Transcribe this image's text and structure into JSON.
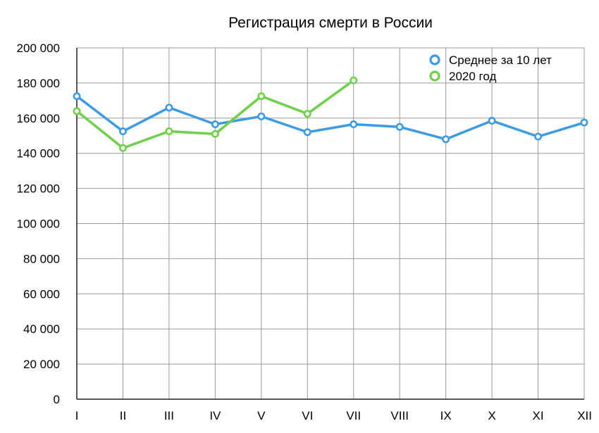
{
  "chart_data": {
    "type": "line",
    "title": "Регистрация смерти в России",
    "xlabel": "",
    "ylabel": "",
    "categories": [
      "I",
      "II",
      "III",
      "IV",
      "V",
      "VI",
      "VII",
      "VIII",
      "IX",
      "X",
      "XI",
      "XII"
    ],
    "y_tick_labels": [
      "0",
      "20 000",
      "40 000",
      "60 000",
      "80 000",
      "100 000",
      "120 000",
      "140 000",
      "160 000",
      "180 000",
      "200 000"
    ],
    "y_ticks": [
      0,
      20000,
      40000,
      60000,
      80000,
      100000,
      120000,
      140000,
      160000,
      180000,
      200000
    ],
    "ylim": [
      0,
      200000
    ],
    "grid": true,
    "legend_position": "top-right",
    "series": [
      {
        "name": "Среднее за 10 лет",
        "color": "#3d9be3",
        "values": [
          172500,
          152500,
          166000,
          156500,
          161000,
          152000,
          156500,
          155000,
          148000,
          158500,
          149500,
          157500
        ]
      },
      {
        "name": "2020 год",
        "color": "#6fd04a",
        "values": [
          164000,
          143000,
          152500,
          151000,
          172500,
          162500,
          181500,
          null,
          null,
          null,
          null,
          null
        ]
      }
    ]
  }
}
